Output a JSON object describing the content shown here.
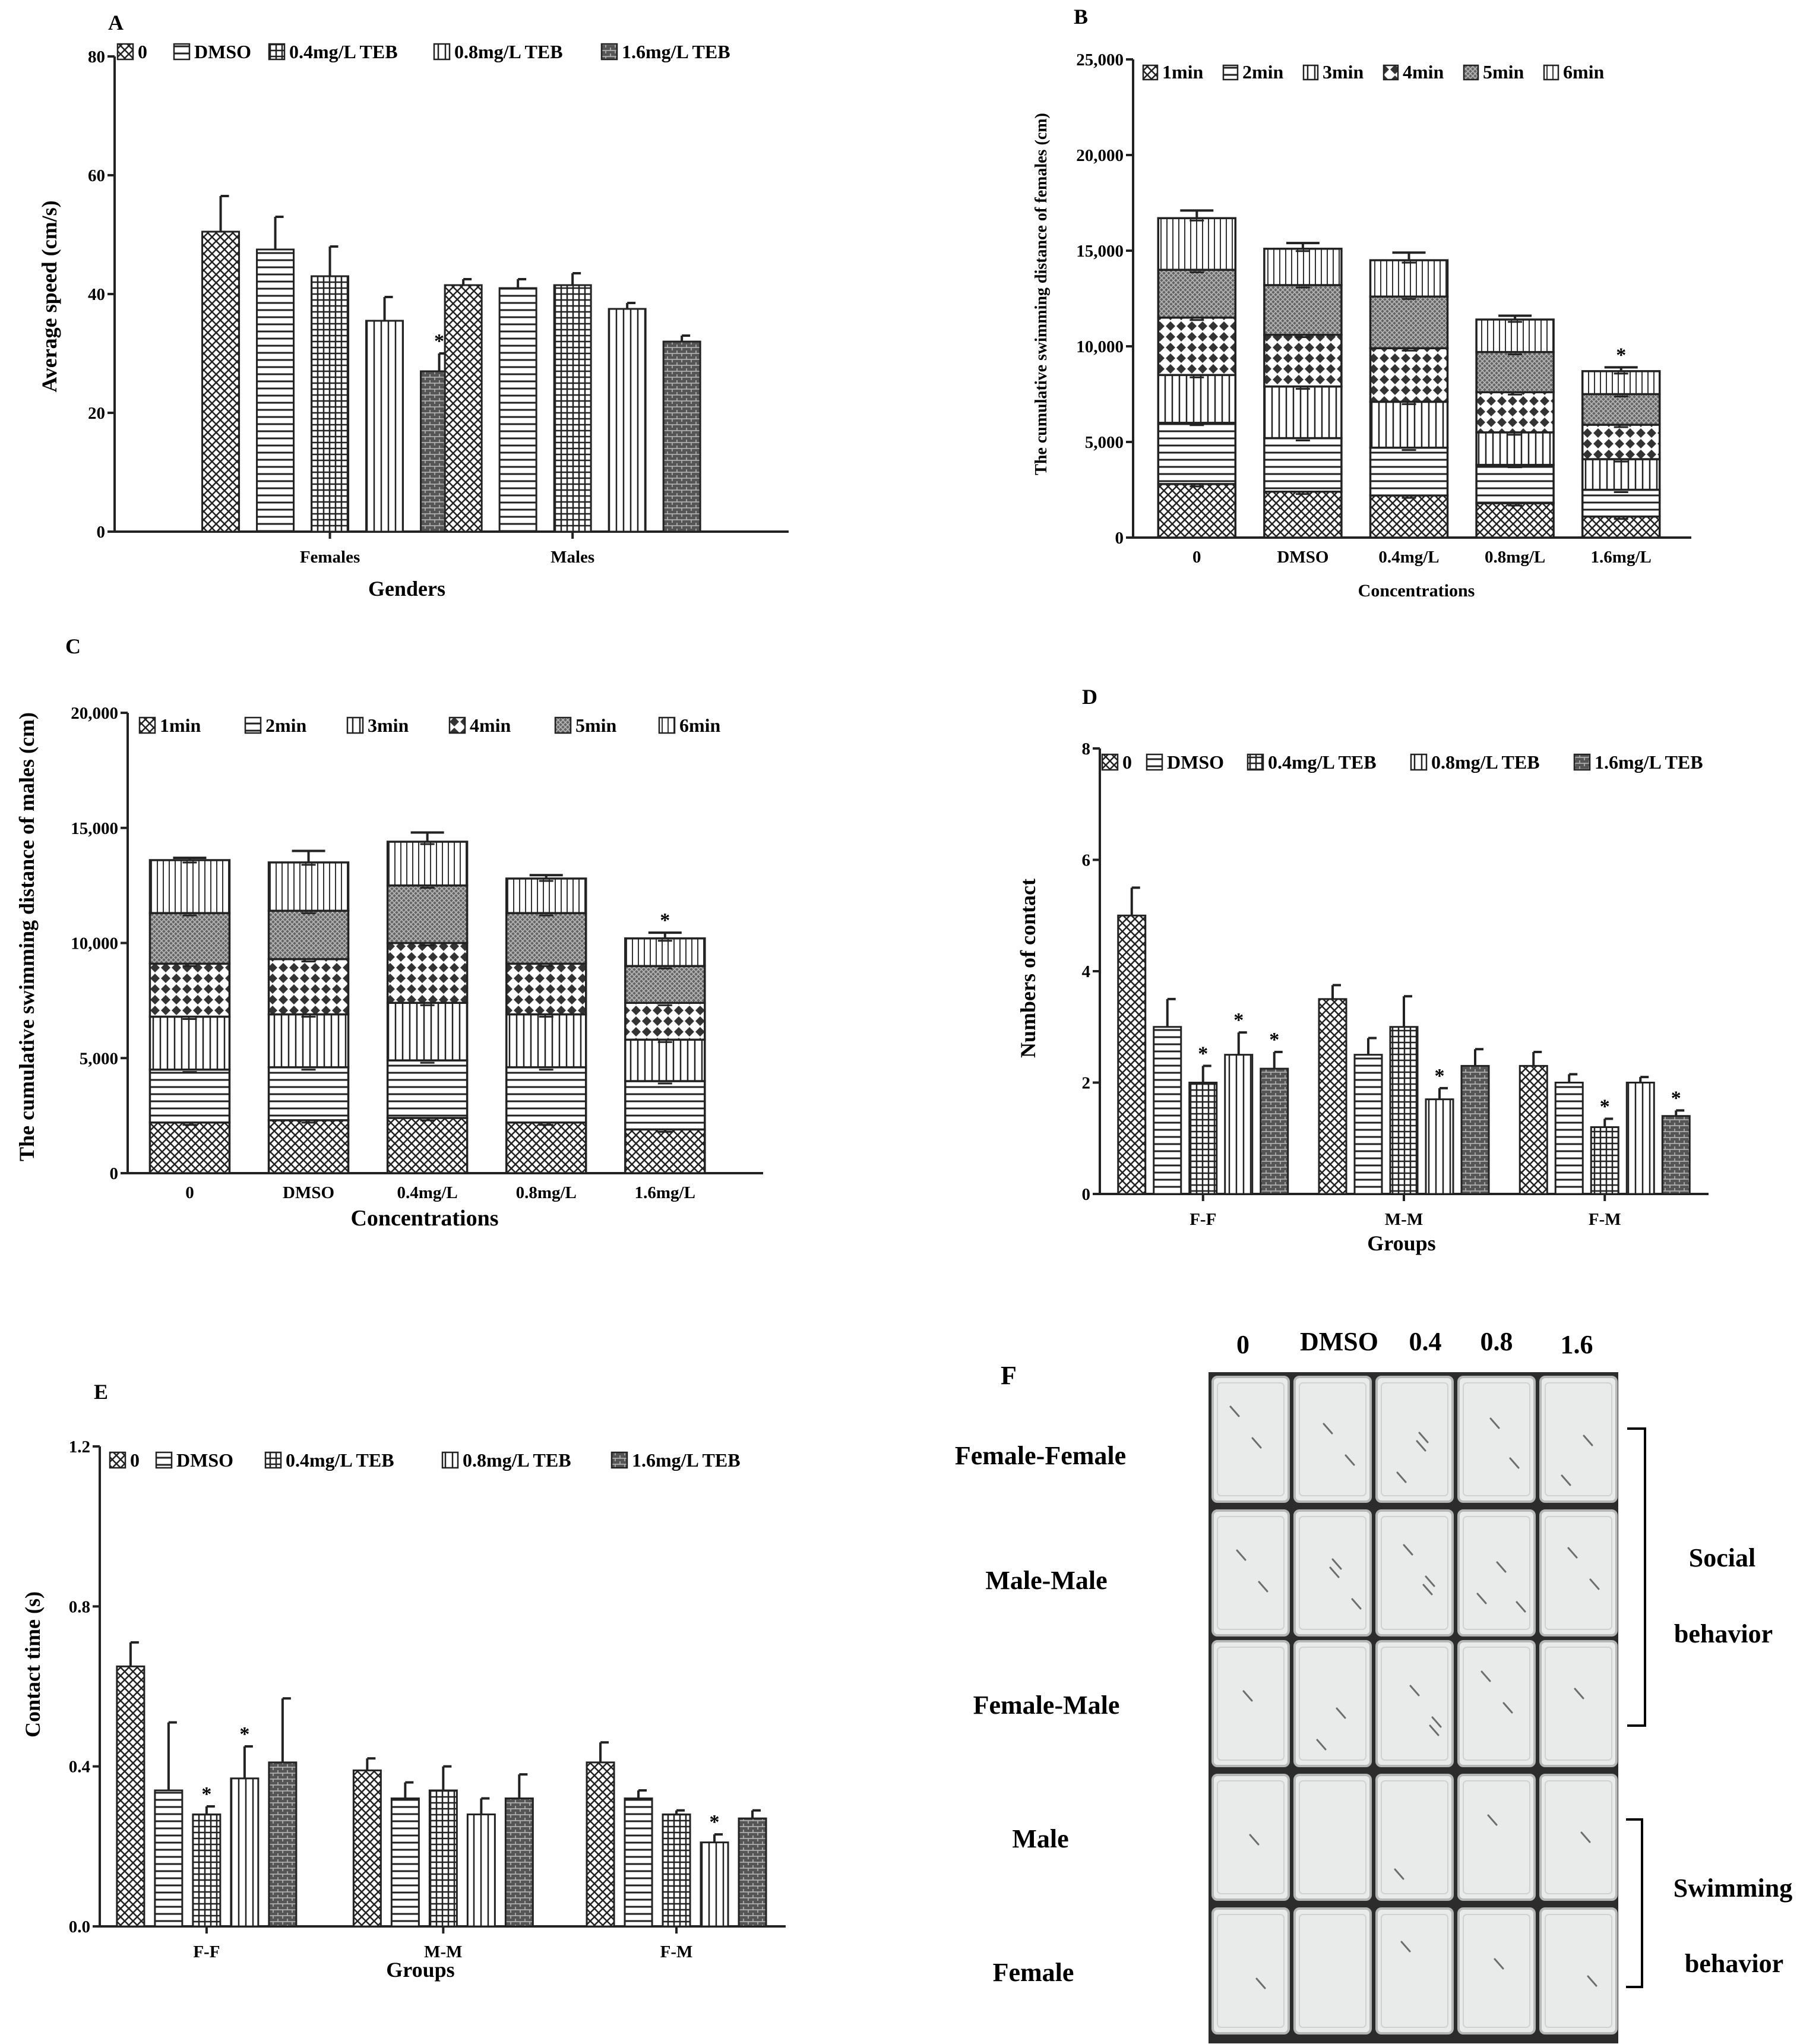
{
  "figure": {
    "patterns": {
      "0": "cross",
      "DMSO": "hlines",
      "0.4mg/L TEB": "grid",
      "0.8mg/L TEB": "vlines",
      "1.6mg/L TEB": "brick",
      "1min": "cross",
      "2min": "hlines",
      "3min": "vlines",
      "4min": "diamond",
      "5min": "dense",
      "6min": "vlines2"
    },
    "colors": {
      "ink": "#222222",
      "background": "#ffffff",
      "photo_bg": "#e9ebea"
    }
  },
  "chart_data": [
    {
      "panel": "A",
      "type": "bar",
      "title": "A",
      "xlabel": "Genders",
      "ylabel": "Average speed (cm/s)",
      "ylim": [
        0,
        80
      ],
      "yticks": [
        "0",
        "20",
        "40",
        "60",
        "80"
      ],
      "categories": [
        "Females",
        "Males"
      ],
      "series": [
        {
          "name": "0",
          "values": [
            50.5,
            41.5
          ],
          "errors": [
            6.0,
            1.0
          ]
        },
        {
          "name": "DMSO",
          "values": [
            47.5,
            41.0
          ],
          "errors": [
            5.5,
            1.5
          ]
        },
        {
          "name": "0.4mg/L TEB",
          "values": [
            43.0,
            41.5
          ],
          "errors": [
            5.0,
            2.0
          ]
        },
        {
          "name": "0.8mg/L TEB",
          "values": [
            35.5,
            37.5
          ],
          "errors": [
            4.0,
            1.0
          ]
        },
        {
          "name": "1.6mg/L TEB",
          "values": [
            27.0,
            32.0
          ],
          "errors": [
            3.0,
            1.0
          ]
        }
      ],
      "significance": [
        {
          "category": "Females",
          "series": "1.6mg/L TEB",
          "label": "*"
        }
      ]
    },
    {
      "panel": "B",
      "type": "bar",
      "stacked": true,
      "title": "B",
      "xlabel": "Concentrations",
      "ylabel": "The cumulative swimming distance of females (cm)",
      "ylim": [
        0,
        25000
      ],
      "yticks": [
        "0",
        "5,000",
        "10,000",
        "15,000",
        "20,000",
        "25,000"
      ],
      "categories": [
        "0",
        "DMSO",
        "0.4mg/L",
        "0.8mg/L",
        "1.6mg/L"
      ],
      "series": [
        {
          "name": "1min",
          "values": [
            2800,
            2400,
            2200,
            1800,
            1100
          ]
        },
        {
          "name": "2min",
          "values": [
            3200,
            2800,
            2500,
            2000,
            1400
          ]
        },
        {
          "name": "3min",
          "values": [
            2500,
            2700,
            2400,
            1700,
            1600
          ]
        },
        {
          "name": "4min",
          "values": [
            3000,
            2700,
            2800,
            2100,
            1800
          ]
        },
        {
          "name": "5min",
          "values": [
            2500,
            2600,
            2700,
            2100,
            1600
          ]
        },
        {
          "name": "6min",
          "values": [
            2700,
            1900,
            1900,
            1700,
            1200
          ]
        }
      ],
      "errors_top": [
        400,
        300,
        400,
        200,
        200
      ],
      "significance": [
        {
          "category": "1.6mg/L",
          "label": "*"
        }
      ]
    },
    {
      "panel": "C",
      "type": "bar",
      "stacked": true,
      "title": "C",
      "xlabel": "Concentrations",
      "ylabel": "The cumulative swimming distance of males (cm)",
      "ylim": [
        0,
        20000
      ],
      "yticks": [
        "0",
        "5,000",
        "10,000",
        "15,000",
        "20,000"
      ],
      "categories": [
        "0",
        "DMSO",
        "0.4mg/L",
        "0.8mg/L",
        "1.6mg/L"
      ],
      "series": [
        {
          "name": "1min",
          "values": [
            2200,
            2300,
            2400,
            2200,
            1900
          ]
        },
        {
          "name": "2min",
          "values": [
            2300,
            2300,
            2500,
            2400,
            2100
          ]
        },
        {
          "name": "3min",
          "values": [
            2300,
            2300,
            2500,
            2300,
            1800
          ]
        },
        {
          "name": "4min",
          "values": [
            2300,
            2400,
            2600,
            2200,
            1600
          ]
        },
        {
          "name": "5min",
          "values": [
            2200,
            2100,
            2500,
            2200,
            1600
          ]
        },
        {
          "name": "6min",
          "values": [
            2300,
            2100,
            1900,
            1500,
            1200
          ]
        }
      ],
      "errors_top": [
        100,
        500,
        400,
        150,
        250
      ],
      "significance": [
        {
          "category": "1.6mg/L",
          "label": "*"
        }
      ]
    },
    {
      "panel": "D",
      "type": "bar",
      "title": "D",
      "xlabel": "Groups",
      "ylabel": "Numbers of contact",
      "ylim": [
        0,
        8
      ],
      "yticks": [
        "0",
        "2",
        "4",
        "6",
        "8"
      ],
      "categories": [
        "F-F",
        "M-M",
        "F-M"
      ],
      "series": [
        {
          "name": "0",
          "values": [
            5.0,
            3.5,
            2.3
          ],
          "errors": [
            0.5,
            0.25,
            0.25
          ]
        },
        {
          "name": "DMSO",
          "values": [
            3.0,
            2.5,
            2.0
          ],
          "errors": [
            0.5,
            0.3,
            0.15
          ]
        },
        {
          "name": "0.4mg/L TEB",
          "values": [
            2.0,
            3.0,
            1.2
          ],
          "errors": [
            0.3,
            0.55,
            0.15
          ]
        },
        {
          "name": "0.8mg/L TEB",
          "values": [
            2.5,
            1.7,
            2.0
          ],
          "errors": [
            0.4,
            0.2,
            0.1
          ]
        },
        {
          "name": "1.6mg/L TEB",
          "values": [
            2.25,
            2.3,
            1.4
          ],
          "errors": [
            0.3,
            0.3,
            0.1
          ]
        }
      ],
      "significance": [
        {
          "category": "F-F",
          "series": "0.4mg/L TEB",
          "label": "*"
        },
        {
          "category": "F-F",
          "series": "0.8mg/L TEB",
          "label": "*"
        },
        {
          "category": "F-F",
          "series": "1.6mg/L TEB",
          "label": "*"
        },
        {
          "category": "M-M",
          "series": "0.8mg/L TEB",
          "label": "*"
        },
        {
          "category": "F-M",
          "series": "0.4mg/L TEB",
          "label": "*"
        },
        {
          "category": "F-M",
          "series": "1.6mg/L TEB",
          "label": "*"
        }
      ]
    },
    {
      "panel": "E",
      "type": "bar",
      "title": "E",
      "xlabel": "Groups",
      "ylabel": "Contact time (s)",
      "ylim": [
        0,
        1.2
      ],
      "yticks": [
        "0.0",
        "0.4",
        "0.8",
        "1.2"
      ],
      "categories": [
        "F-F",
        "M-M",
        "F-M"
      ],
      "series": [
        {
          "name": "0",
          "values": [
            0.65,
            0.39,
            0.41
          ],
          "errors": [
            0.06,
            0.03,
            0.05
          ]
        },
        {
          "name": "DMSO",
          "values": [
            0.34,
            0.32,
            0.32
          ],
          "errors": [
            0.17,
            0.04,
            0.02
          ]
        },
        {
          "name": "0.4mg/L TEB",
          "values": [
            0.28,
            0.34,
            0.28
          ],
          "errors": [
            0.02,
            0.06,
            0.01
          ]
        },
        {
          "name": "0.8mg/L TEB",
          "values": [
            0.37,
            0.28,
            0.21
          ],
          "errors": [
            0.08,
            0.04,
            0.02
          ]
        },
        {
          "name": "1.6mg/L TEB",
          "values": [
            0.41,
            0.32,
            0.27
          ],
          "errors": [
            0.16,
            0.06,
            0.02
          ]
        }
      ],
      "significance": [
        {
          "category": "F-F",
          "series": "0.4mg/L TEB",
          "label": "*"
        },
        {
          "category": "F-F",
          "series": "0.8mg/L TEB",
          "label": "*"
        },
        {
          "category": "F-M",
          "series": "0.8mg/L TEB",
          "label": "*"
        }
      ]
    }
  ],
  "photo": {
    "title": "F",
    "columns": [
      "0",
      "DMSO",
      "0.4",
      "0.8",
      "1.6"
    ],
    "rows": [
      "Female-Female",
      "Male-Male",
      "Female-Male",
      "Male",
      "Female"
    ],
    "group_social_line1": "Social",
    "group_social_line2": "behavior",
    "group_swim_line1": "Swimming",
    "group_swim_line2": "behavior"
  }
}
